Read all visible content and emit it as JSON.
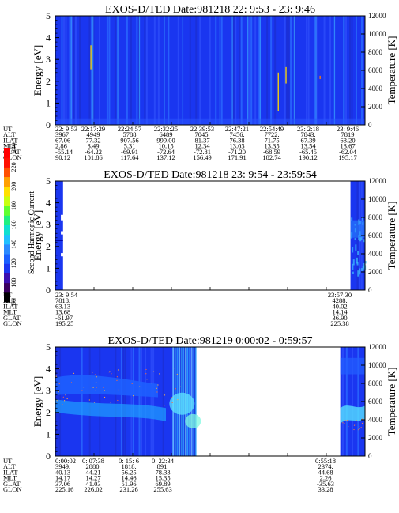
{
  "chart_data": [
    {
      "type": "heatmap",
      "title": "EXOS-D/TED   Date:981218  22: 9:53 - 23: 9:46",
      "ylabel": "Energy [eV]",
      "y2label": "Temperature [K]",
      "ylim": [
        0,
        5
      ],
      "y2lim": [
        0,
        12000
      ],
      "yticks": [
        "0",
        "1",
        "2",
        "3",
        "4",
        "5"
      ],
      "y2ticks": [
        "0",
        "2000",
        "4000",
        "6000",
        "8000",
        "10000",
        "12000"
      ],
      "data_extent": [
        0.0,
        1.0
      ],
      "features": [
        {
          "t": 0.115,
          "y0": 2.55,
          "y1": 3.65,
          "color": "#ffd800"
        },
        {
          "t": 0.72,
          "y0": 0.65,
          "y1": 2.4,
          "color": "#ffd800"
        },
        {
          "t": 0.745,
          "y0": 1.9,
          "y1": 2.65,
          "color": "#ffd800"
        },
        {
          "t": 0.855,
          "y0": 2.1,
          "y1": 2.25,
          "color": "#ff8000"
        }
      ],
      "table": {
        "labels": [
          "UT",
          "ALT",
          "ILAT",
          "MLT",
          "GLAT",
          "GLON"
        ],
        "columns": [
          [
            "22: 9:53",
            "3967",
            "67.06",
            "2.86",
            "-55.14",
            "90.12"
          ],
          [
            "22:17:29",
            "4949",
            "77.32",
            "3.49",
            "-64.22",
            "101.86"
          ],
          [
            "22:24:57",
            "5788",
            "907.56",
            "5.31",
            "-69.91",
            "117.64"
          ],
          [
            "22:32:25",
            "6489",
            "999.00",
            "10.15",
            "-72.64",
            "137.12"
          ],
          [
            "22:39:53",
            "7045.",
            "81.37",
            "12.34",
            "-72.81",
            "156.49"
          ],
          [
            "22:47:21",
            "7456.",
            "76.38",
            "13.03",
            "-71.20",
            "171.91"
          ],
          [
            "22:54:49",
            "7722.",
            "71.75",
            "13.35",
            "-68.59",
            "182.74"
          ],
          [
            "23: 2:18",
            "7843.",
            "67.39",
            "13.54",
            "-65.45",
            "190.12"
          ],
          [
            "23: 9:46",
            "7819",
            "63.20",
            "13.67",
            "-62.04",
            "195.17"
          ]
        ]
      }
    },
    {
      "type": "heatmap",
      "title": "EXOS-D/TED   Date:981218  23: 9:54 - 23:59:54",
      "ylabel": "Energy [eV]",
      "y2label": "Temperature [K]",
      "ylim": [
        0,
        5
      ],
      "y2lim": [
        0,
        12000
      ],
      "yticks": [
        "0",
        "1",
        "2",
        "3",
        "4",
        "5"
      ],
      "y2ticks": [
        "0",
        "2000",
        "4000",
        "6000",
        "8000",
        "10000",
        "12000"
      ],
      "data_extent": [
        [
          0.0,
          0.025
        ],
        [
          0.953,
          1.0
        ]
      ],
      "colorbar": {
        "label": "Second Harmonic Current",
        "ticks": [
          "80",
          "100",
          "120",
          "140",
          "160",
          "180",
          "200",
          "220",
          "240"
        ]
      },
      "table": {
        "labels": [
          "UT",
          "ALT",
          "ILAT",
          "MLT",
          "GLAT",
          "GLON"
        ],
        "columns": [
          [
            "23: 9:54",
            "7818.",
            "63.13",
            "13.68",
            "-61.97",
            "195.25"
          ],
          [
            "23:57:30",
            "4288.",
            "40.02",
            "14.14",
            "36.90",
            "225.38"
          ]
        ]
      }
    },
    {
      "type": "heatmap",
      "title": "EXOS-D/TED   Date:981219   0:00:02 -  0:59:57",
      "ylabel": "Energy [eV]",
      "y2label": "Temperature [K]",
      "ylim": [
        0,
        5
      ],
      "y2lim": [
        0,
        12000
      ],
      "yticks": [
        "0",
        "1",
        "2",
        "3",
        "4",
        "5"
      ],
      "y2ticks": [
        "0",
        "2000",
        "4000",
        "6000",
        "8000",
        "10000",
        "12000"
      ],
      "data_extent": [
        [
          0.0,
          0.455
        ],
        [
          0.92,
          1.0
        ]
      ],
      "table": {
        "labels": [
          "UT",
          "ALT",
          "ILAT",
          "MLT",
          "GLAT",
          "GLON"
        ],
        "columns": [
          [
            "0:00:02",
            "3949.",
            "40.13",
            "14.17",
            "37.06",
            "225.16"
          ],
          [
            "0: 07:38",
            "2880.",
            "44.21",
            "14.27",
            "41.03",
            "226.02"
          ],
          [
            "0: 15: 6",
            "1818.",
            "56.25",
            "14.46",
            "51.96",
            "231.26"
          ],
          [
            "0: 22:34",
            "891.",
            "78.33",
            "15.35",
            "69.89",
            "255.63"
          ],
          [
            "0:55:18",
            "2374.",
            "44.68",
            "2.26",
            "-35.63",
            "33.28"
          ]
        ]
      }
    }
  ]
}
